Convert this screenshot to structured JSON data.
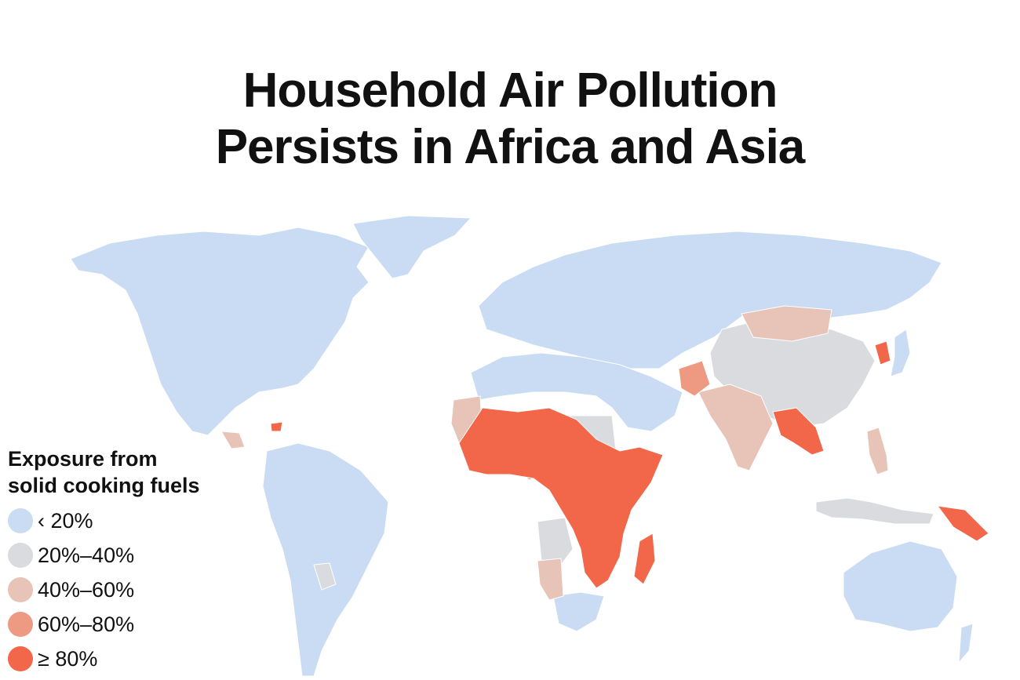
{
  "title": {
    "line1": "Household Air Pollution",
    "line2": "Persists in Africa and Asia"
  },
  "legend": {
    "title_line1": "Exposure from",
    "title_line2": "solid cooking fuels",
    "items": [
      {
        "label": "‹ 20%",
        "color": "#c9dcf3"
      },
      {
        "label": "20%–40%",
        "color": "#dadbde"
      },
      {
        "label": "40%–60%",
        "color": "#e8c3b8"
      },
      {
        "label": "60%–80%",
        "color": "#ee9a83"
      },
      {
        "label": "≥ 80%",
        "color": "#f26749"
      }
    ]
  },
  "map_colors": {
    "lt20": "#c9dcf3",
    "b20_40": "#dadbde",
    "b40_60": "#e8c3b8",
    "b60_80": "#ee9a83",
    "gte80": "#f26749",
    "border": "#ffffff"
  }
}
